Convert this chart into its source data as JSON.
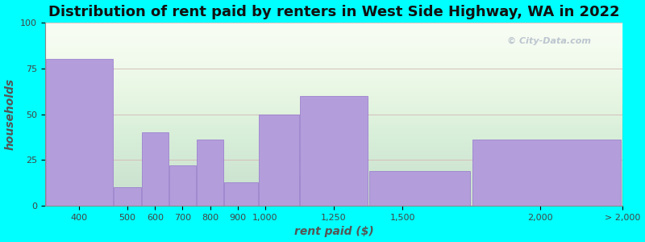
{
  "title": "Distribution of rent paid by renters in West Side Highway, WA in 2022",
  "xlabel": "rent paid ($)",
  "ylabel": "households",
  "background_outer": "#00FFFF",
  "background_inner": "#f0f4ee",
  "bar_color": "#b39ddb",
  "bar_edge_color": "#9575cd",
  "ylim": [
    0,
    100
  ],
  "yticks": [
    0,
    25,
    50,
    75,
    100
  ],
  "watermark": "© City-Data.com",
  "title_fontsize": 13,
  "axis_label_fontsize": 10,
  "tick_label_fontsize": 8,
  "values": [
    80,
    10,
    40,
    22,
    36,
    13,
    50,
    60,
    19,
    36
  ],
  "bin_edges": [
    200,
    450,
    550,
    650,
    750,
    850,
    975,
    1125,
    1375,
    1750,
    2300
  ],
  "xtick_positions": [
    325,
    500,
    600,
    700,
    800,
    900,
    1000,
    1250,
    1500,
    2000,
    2300
  ],
  "xtick_labels": [
    "400",
    "500",
    "600",
    "700",
    "800",
    "900",
    "1,000",
    "1,250",
    "1,500",
    "2,000",
    "> 2,000"
  ],
  "grid_color": "#d4b8b8",
  "grid_alpha": 0.8
}
